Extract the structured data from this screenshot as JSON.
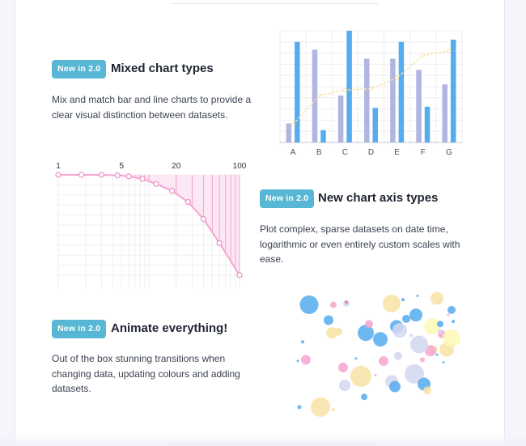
{
  "features": [
    {
      "badge": "New in 2.0",
      "title": "Mixed chart types",
      "desc": "Mix and match bar and line charts to provide a clear visual distinction between datasets."
    },
    {
      "badge": "New in 2.0",
      "title": "New chart axis types",
      "desc": "Plot complex, sparse datasets on date time, logarithmic or even entirely custom scales with ease."
    },
    {
      "badge": "New in 2.0",
      "title": "Animate everything!",
      "desc": "Out of the box stunning transitions when changing data, updating colours and adding datasets."
    }
  ],
  "colors": {
    "badge": "#58b7d4",
    "bar_blue": "#55acef",
    "bar_lavender": "#b1b6e0",
    "line_yellow": "#f8e3a6",
    "pink": "#f4a6cf",
    "pink_fill": "#fce4f4"
  },
  "chart_data": [
    {
      "type": "bar",
      "categories": [
        "A",
        "B",
        "C",
        "D",
        "E",
        "F",
        "G"
      ],
      "ylim": [
        0,
        100
      ],
      "series": [
        {
          "values": [
            17,
            83,
            42,
            75,
            75,
            65,
            52
          ],
          "color": "#b1b6e0"
        },
        {
          "values": [
            90,
            11,
            100,
            31,
            90,
            32,
            92
          ],
          "color": "#55acef"
        },
        {
          "values": [
            16,
            42,
            47,
            48,
            58,
            78,
            82
          ],
          "color": "#f8e3a6",
          "style": "line"
        }
      ],
      "grid": true
    },
    {
      "type": "line",
      "xscale": "log",
      "tick_labels": [
        "1",
        "5",
        "20",
        "100"
      ],
      "tick_values": [
        1,
        5,
        20,
        100
      ],
      "x": [
        1,
        1.8,
        3,
        4.5,
        6,
        8.5,
        12,
        18,
        27,
        40,
        60,
        100
      ],
      "y": [
        100,
        100,
        100,
        99.5,
        98.5,
        96,
        91,
        84,
        73,
        56,
        32,
        0
      ],
      "fill": true,
      "grid": true
    },
    {
      "type": "scatter",
      "subtype": "bubble",
      "points": [
        {
          "x": 11,
          "y": 87,
          "r": 11.5,
          "c": "#55acef"
        },
        {
          "x": 78,
          "y": 94,
          "r": 1.5,
          "c": "#55acef"
        },
        {
          "x": 26,
          "y": 87,
          "r": 4,
          "c": "#f4a6cf"
        },
        {
          "x": 34,
          "y": 88,
          "r": 4,
          "c": "#d2d7f0"
        },
        {
          "x": 34,
          "y": 89,
          "r": 2,
          "c": "#ef6fa8"
        },
        {
          "x": 77,
          "y": 79,
          "r": 8,
          "c": "#55acef"
        },
        {
          "x": 87,
          "y": 70,
          "r": 10,
          "c": "#fbf8b6"
        },
        {
          "x": 9,
          "y": 44,
          "r": 6,
          "c": "#f4a6cf"
        },
        {
          "x": 5,
          "y": 7,
          "r": 2.5,
          "c": "#55acef"
        },
        {
          "x": 18,
          "y": 7,
          "r": 12,
          "c": "#f8e3a6"
        },
        {
          "x": 26,
          "y": 5,
          "r": 2,
          "c": "#f8e3a6"
        },
        {
          "x": 33,
          "y": 24,
          "r": 7,
          "c": "#d2d7f0"
        },
        {
          "x": 40,
          "y": 45,
          "r": 1.5,
          "c": "#55acef"
        },
        {
          "x": 43,
          "y": 31,
          "r": 13,
          "c": "#f8e3a6"
        },
        {
          "x": 45,
          "y": 15,
          "r": 4,
          "c": "#55acef"
        },
        {
          "x": 55,
          "y": 60,
          "r": 9,
          "c": "#55acef"
        },
        {
          "x": 66,
          "y": 47,
          "r": 5,
          "c": "#d2d7f0"
        },
        {
          "x": 62,
          "y": 88,
          "r": 11,
          "c": "#f8e3a6"
        },
        {
          "x": 69,
          "y": 91,
          "r": 2,
          "c": "#55acef"
        },
        {
          "x": 88,
          "y": 52,
          "r": 5,
          "c": "#f8e3a6"
        },
        {
          "x": 100,
          "y": 74,
          "r": 2,
          "c": "#55acef"
        },
        {
          "x": 71,
          "y": 76,
          "r": 5,
          "c": "#55acef"
        },
        {
          "x": 74,
          "y": 63,
          "r": 2,
          "c": "#d2d7f0"
        },
        {
          "x": 94,
          "y": 42,
          "r": 1.5,
          "c": "#55acef"
        },
        {
          "x": 57,
          "y": 43,
          "r": 6,
          "c": "#f4a6cf"
        },
        {
          "x": 52,
          "y": 32,
          "r": 1.5,
          "c": "#f4a6cf"
        },
        {
          "x": 62,
          "y": 27,
          "r": 8,
          "c": "#d2d7f0"
        },
        {
          "x": 64,
          "y": 23,
          "r": 7,
          "c": "#55acef"
        },
        {
          "x": 76,
          "y": 33,
          "r": 12,
          "c": "#d2d7f0"
        },
        {
          "x": 90,
          "y": 48,
          "r": 1.5,
          "c": "#55acef"
        },
        {
          "x": 93,
          "y": 64,
          "r": 5,
          "c": "#f4a6cf"
        },
        {
          "x": 92,
          "y": 72,
          "r": 4,
          "c": "#55acef"
        },
        {
          "x": 97,
          "y": 79,
          "r": 1.5,
          "c": "#f4a6cf"
        },
        {
          "x": 99,
          "y": 83,
          "r": 5,
          "c": "#55acef"
        },
        {
          "x": 96,
          "y": 52,
          "r": 9,
          "c": "#f8e3a6"
        },
        {
          "x": 99,
          "y": 61,
          "r": 11,
          "c": "#fbf8b6"
        },
        {
          "x": 92,
          "y": 66,
          "r": 3,
          "c": "#d2d7f0"
        },
        {
          "x": 86,
          "y": 51,
          "r": 7,
          "c": "#f4a6cf"
        },
        {
          "x": 81,
          "y": 44,
          "r": 3,
          "c": "#f4a6cf"
        },
        {
          "x": 32,
          "y": 38,
          "r": 6,
          "c": "#f4a6cf"
        },
        {
          "x": 4,
          "y": 43,
          "r": 1.5,
          "c": "#55acef"
        },
        {
          "x": 7,
          "y": 58,
          "r": 2,
          "c": "#55acef"
        },
        {
          "x": 25,
          "y": 65,
          "r": 7,
          "c": "#f8e3a6"
        },
        {
          "x": 29,
          "y": 66,
          "r": 5,
          "c": "#f8e3a6"
        },
        {
          "x": 23,
          "y": 75,
          "r": 6,
          "c": "#55acef"
        },
        {
          "x": 46,
          "y": 65,
          "r": 10,
          "c": "#55acef"
        },
        {
          "x": 48,
          "y": 72,
          "r": 5,
          "c": "#f4a6cf"
        },
        {
          "x": 65,
          "y": 70,
          "r": 8,
          "c": "#55acef"
        },
        {
          "x": 67,
          "y": 67,
          "r": 9,
          "c": "#d2d7f0"
        },
        {
          "x": 79,
          "y": 56,
          "r": 11,
          "c": "#d2d7f0"
        },
        {
          "x": 82,
          "y": 25,
          "r": 8,
          "c": "#55acef"
        },
        {
          "x": 84,
          "y": 20,
          "r": 5,
          "c": "#f8e3a6"
        },
        {
          "x": 90,
          "y": 92,
          "r": 8,
          "c": "#f8e3a6"
        }
      ]
    }
  ]
}
